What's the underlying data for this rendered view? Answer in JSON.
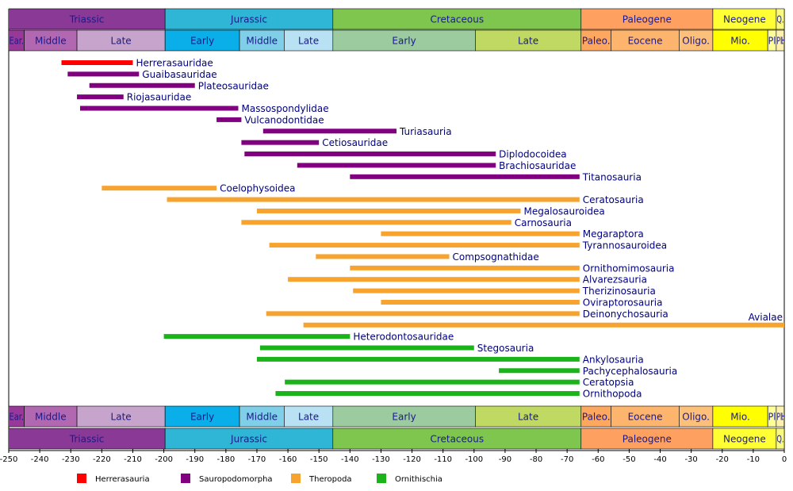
{
  "chart_data": {
    "type": "timeline",
    "xlim": [
      -250,
      0
    ],
    "xticks": [
      -250,
      -240,
      -230,
      -220,
      -210,
      -200,
      -190,
      -180,
      -170,
      -160,
      -150,
      -140,
      -130,
      -120,
      -110,
      -100,
      -90,
      -80,
      -70,
      -60,
      -50,
      -40,
      -30,
      -20,
      -10,
      0
    ],
    "periods": [
      {
        "name": "Triassic",
        "start": -251,
        "end": -199.6,
        "color": "#8a3a96"
      },
      {
        "name": "Jurassic",
        "start": -199.6,
        "end": -145.5,
        "color": "#2fb5d5"
      },
      {
        "name": "Cretaceous",
        "start": -145.5,
        "end": -65.5,
        "color": "#7fc64e"
      },
      {
        "name": "Paleogene",
        "start": -65.5,
        "end": -23.03,
        "color": "#fda060"
      },
      {
        "name": "Neogene",
        "start": -23.03,
        "end": -2.588,
        "color": "#ffff33"
      },
      {
        "name": "Q.",
        "start": -2.588,
        "end": 0,
        "color": "#f9f97f"
      }
    ],
    "epochs": [
      {
        "name": "Ear.",
        "start": -251,
        "end": -245,
        "color": "#983999"
      },
      {
        "name": "Middle",
        "start": -245,
        "end": -228,
        "color": "#b168b1"
      },
      {
        "name": "Late",
        "start": -228,
        "end": -199.6,
        "color": "#c6a4cc"
      },
      {
        "name": "Early",
        "start": -199.6,
        "end": -175.6,
        "color": "#0aaee8"
      },
      {
        "name": "Middle",
        "start": -175.6,
        "end": -161.2,
        "color": "#80cfe8"
      },
      {
        "name": "Late",
        "start": -161.2,
        "end": -145.5,
        "color": "#b8e2f4"
      },
      {
        "name": "Early",
        "start": -145.5,
        "end": -99.6,
        "color": "#9ccba0"
      },
      {
        "name": "Late",
        "start": -99.6,
        "end": -65.5,
        "color": "#bfd962"
      },
      {
        "name": "Paleo.",
        "start": -65.5,
        "end": -55.8,
        "color": "#fda75f"
      },
      {
        "name": "Eocene",
        "start": -55.8,
        "end": -33.9,
        "color": "#fdb46c"
      },
      {
        "name": "Oligo.",
        "start": -33.9,
        "end": -23.03,
        "color": "#fdc07a"
      },
      {
        "name": "Mio.",
        "start": -23.03,
        "end": -5.332,
        "color": "#ffff00"
      },
      {
        "name": "Pl",
        "start": -5.332,
        "end": -2.588,
        "color": "#ffff99"
      },
      {
        "name": "Pl.",
        "start": -2.588,
        "end": -0.0117,
        "color": "#fff2ae"
      },
      {
        "name": "H.",
        "start": -0.0117,
        "end": 0,
        "color": "#feebd2"
      }
    ],
    "series": [
      {
        "name": "Herrerasauria",
        "color": "#ff0000",
        "items": [
          {
            "name": "Herrerasauridae",
            "start": -233,
            "end": -210
          }
        ]
      },
      {
        "name": "Sauropodomorpha",
        "color": "#800080",
        "items": [
          {
            "name": "Guaibasauridae",
            "start": -231,
            "end": -208
          },
          {
            "name": "Plateosauridae",
            "start": -224,
            "end": -190
          },
          {
            "name": "Riojasauridae",
            "start": -228,
            "end": -213
          },
          {
            "name": "Massospondylidae",
            "start": -227,
            "end": -176
          },
          {
            "name": "Vulcanodontidae",
            "start": -183,
            "end": -175
          },
          {
            "name": "Turiasauria",
            "start": -168,
            "end": -125
          },
          {
            "name": "Cetiosauridae",
            "start": -175,
            "end": -150
          },
          {
            "name": "Diplodocoidea",
            "start": -174,
            "end": -93
          },
          {
            "name": "Brachiosauridae",
            "start": -157,
            "end": -93
          },
          {
            "name": "Titanosauria",
            "start": -140,
            "end": -66
          }
        ]
      },
      {
        "name": "Theropoda",
        "color": "#f7a32f",
        "items": [
          {
            "name": "Coelophysoidea",
            "start": -220,
            "end": -183
          },
          {
            "name": "Ceratosauria",
            "start": -199,
            "end": -66
          },
          {
            "name": "Megalosauroidea",
            "start": -170,
            "end": -85
          },
          {
            "name": "Carnosauria",
            "start": -175,
            "end": -88
          },
          {
            "name": "Megaraptora",
            "start": -130,
            "end": -66
          },
          {
            "name": "Tyrannosauroidea",
            "start": -166,
            "end": -66
          },
          {
            "name": "Compsognathidae",
            "start": -151,
            "end": -108
          },
          {
            "name": "Ornithomimosauria",
            "start": -140,
            "end": -66
          },
          {
            "name": "Alvarezsauria",
            "start": -160,
            "end": -66
          },
          {
            "name": "Therizinosauria",
            "start": -139,
            "end": -66
          },
          {
            "name": "Oviraptorosauria",
            "start": -130,
            "end": -66
          },
          {
            "name": "Deinonychosauria",
            "start": -167,
            "end": -66
          },
          {
            "name": "Avialae",
            "start": -155,
            "end": 0
          }
        ]
      },
      {
        "name": "Ornithischia",
        "color": "#1ab41a",
        "items": [
          {
            "name": "Heterodontosauridae",
            "start": -200,
            "end": -140
          },
          {
            "name": "Stegosauria",
            "start": -169,
            "end": -100
          },
          {
            "name": "Ankylosauria",
            "start": -170,
            "end": -66
          },
          {
            "name": "Pachycephalosauria",
            "start": -92,
            "end": -66
          },
          {
            "name": "Ceratopsia",
            "start": -161,
            "end": -66
          },
          {
            "name": "Ornithopoda",
            "start": -164,
            "end": -66
          }
        ]
      }
    ]
  }
}
